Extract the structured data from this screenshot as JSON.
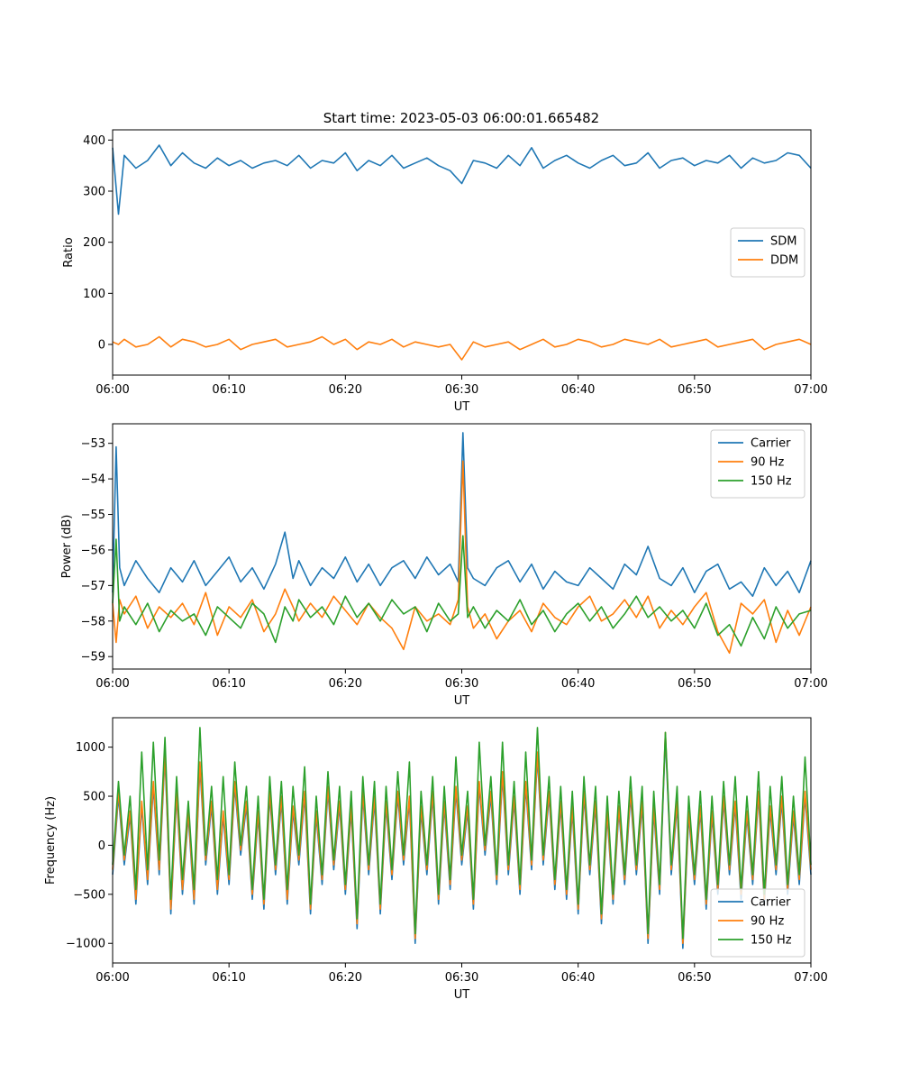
{
  "figure_title": "Start time: 2023-05-03 06:00:01.665482",
  "colors": {
    "blue": "#1f77b4",
    "orange": "#ff7f0e",
    "green": "#2ca02c"
  },
  "chart_data": [
    {
      "type": "line",
      "title": "Start time: 2023-05-03 06:00:01.665482",
      "xlabel": "UT",
      "ylabel": "Ratio",
      "x_ticks": [
        "06:00",
        "06:10",
        "06:20",
        "06:30",
        "06:40",
        "06:50",
        "07:00"
      ],
      "x_range_min": [
        0,
        60
      ],
      "ylim": [
        -60,
        420
      ],
      "y_ticks": [
        0,
        100,
        200,
        300,
        400
      ],
      "legend_loc": "center-right",
      "grid": false,
      "x_minutes": [
        0,
        0.5,
        1,
        2,
        3,
        4,
        5,
        6,
        7,
        8,
        9,
        10,
        11,
        12,
        13,
        14,
        15,
        16,
        17,
        18,
        19,
        20,
        21,
        22,
        23,
        24,
        25,
        26,
        27,
        28,
        29,
        30,
        31,
        32,
        33,
        34,
        35,
        36,
        37,
        38,
        39,
        40,
        41,
        42,
        43,
        44,
        45,
        46,
        47,
        48,
        49,
        50,
        51,
        52,
        53,
        54,
        55,
        56,
        57,
        58,
        59,
        60
      ],
      "series": [
        {
          "name": "SDM",
          "color": "#1f77b4",
          "values": [
            385,
            255,
            370,
            345,
            360,
            390,
            350,
            375,
            355,
            345,
            365,
            350,
            360,
            345,
            355,
            360,
            350,
            370,
            345,
            360,
            355,
            375,
            340,
            360,
            350,
            370,
            345,
            355,
            365,
            350,
            340,
            315,
            360,
            355,
            345,
            370,
            350,
            385,
            345,
            360,
            370,
            355,
            345,
            360,
            370,
            350,
            355,
            375,
            345,
            360,
            365,
            350,
            360,
            355,
            370,
            345,
            365,
            355,
            360,
            375,
            370,
            345
          ]
        },
        {
          "name": "DDM",
          "color": "#ff7f0e",
          "values": [
            5,
            0,
            10,
            -5,
            0,
            15,
            -5,
            10,
            5,
            -5,
            0,
            10,
            -10,
            0,
            5,
            10,
            -5,
            0,
            5,
            15,
            0,
            10,
            -10,
            5,
            0,
            10,
            -5,
            5,
            0,
            -5,
            0,
            -30,
            5,
            -5,
            0,
            5,
            -10,
            0,
            10,
            -5,
            0,
            10,
            5,
            -5,
            0,
            10,
            5,
            0,
            10,
            -5,
            0,
            5,
            10,
            -5,
            0,
            5,
            10,
            -10,
            0,
            5,
            10,
            0
          ]
        }
      ]
    },
    {
      "type": "line",
      "xlabel": "UT",
      "ylabel": "Power (dB)",
      "x_ticks": [
        "06:00",
        "06:10",
        "06:20",
        "06:30",
        "06:40",
        "06:50",
        "07:00"
      ],
      "x_range_min": [
        0,
        60
      ],
      "ylim": [
        -59.35,
        -52.45
      ],
      "y_ticks": [
        -59,
        -58,
        -57,
        -56,
        -55,
        -54,
        -53
      ],
      "legend_loc": "top-right",
      "grid": false,
      "x_minutes": [
        0,
        0.3,
        0.6,
        1,
        2,
        3,
        4,
        5,
        6,
        7,
        8,
        9,
        10,
        11,
        12,
        13,
        14,
        14.8,
        15.5,
        16,
        17,
        18,
        19,
        20,
        21,
        22,
        23,
        24,
        25,
        26,
        27,
        28,
        29,
        29.7,
        30.1,
        30.5,
        31,
        32,
        33,
        34,
        35,
        36,
        37,
        38,
        39,
        40,
        41,
        42,
        43,
        44,
        45,
        46,
        47,
        48,
        49,
        50,
        51,
        52,
        53,
        54,
        55,
        56,
        57,
        58,
        59,
        60
      ],
      "series": [
        {
          "name": "Carrier",
          "color": "#1f77b4",
          "values": [
            -57.2,
            -53.1,
            -56.5,
            -57.0,
            -56.3,
            -56.8,
            -57.2,
            -56.5,
            -56.9,
            -56.3,
            -57.0,
            -56.6,
            -56.2,
            -56.9,
            -56.5,
            -57.1,
            -56.4,
            -55.5,
            -56.8,
            -56.3,
            -57.0,
            -56.5,
            -56.8,
            -56.2,
            -56.9,
            -56.4,
            -57.0,
            -56.5,
            -56.3,
            -56.8,
            -56.2,
            -56.7,
            -56.4,
            -56.9,
            -52.7,
            -56.5,
            -56.8,
            -57.0,
            -56.5,
            -56.3,
            -56.9,
            -56.4,
            -57.1,
            -56.6,
            -56.9,
            -57.0,
            -56.5,
            -56.8,
            -57.1,
            -56.4,
            -56.7,
            -55.9,
            -56.8,
            -57.0,
            -56.5,
            -57.2,
            -56.6,
            -56.4,
            -57.1,
            -56.9,
            -57.3,
            -56.5,
            -57.0,
            -56.6,
            -57.2,
            -56.3
          ]
        },
        {
          "name": "90 Hz",
          "color": "#ff7f0e",
          "values": [
            -57.5,
            -58.6,
            -57.4,
            -57.8,
            -57.3,
            -58.2,
            -57.6,
            -57.9,
            -57.5,
            -58.1,
            -57.2,
            -58.4,
            -57.6,
            -57.9,
            -57.4,
            -58.3,
            -57.8,
            -57.1,
            -57.6,
            -58.0,
            -57.5,
            -57.9,
            -57.3,
            -57.7,
            -58.1,
            -57.5,
            -57.9,
            -58.2,
            -58.8,
            -57.6,
            -58.0,
            -57.8,
            -58.1,
            -57.4,
            -53.5,
            -57.6,
            -58.2,
            -57.8,
            -58.5,
            -58.0,
            -57.7,
            -58.3,
            -57.5,
            -57.9,
            -58.1,
            -57.6,
            -57.3,
            -58.0,
            -57.8,
            -57.4,
            -57.9,
            -57.3,
            -58.2,
            -57.7,
            -58.1,
            -57.6,
            -57.2,
            -58.3,
            -58.9,
            -57.5,
            -57.8,
            -57.4,
            -58.6,
            -57.7,
            -58.4,
            -57.6
          ]
        },
        {
          "name": "150 Hz",
          "color": "#2ca02c",
          "values": [
            -57.5,
            -55.7,
            -58.0,
            -57.6,
            -58.1,
            -57.5,
            -58.3,
            -57.7,
            -58.0,
            -57.8,
            -58.4,
            -57.6,
            -57.9,
            -58.2,
            -57.5,
            -57.8,
            -58.6,
            -57.6,
            -58.0,
            -57.4,
            -57.9,
            -57.6,
            -58.1,
            -57.3,
            -57.9,
            -57.5,
            -58.0,
            -57.4,
            -57.8,
            -57.6,
            -58.3,
            -57.5,
            -58.0,
            -57.8,
            -55.6,
            -57.9,
            -57.6,
            -58.2,
            -57.7,
            -58.0,
            -57.4,
            -58.1,
            -57.7,
            -58.3,
            -57.8,
            -57.5,
            -58.0,
            -57.6,
            -58.2,
            -57.8,
            -57.3,
            -57.9,
            -57.6,
            -58.0,
            -57.7,
            -58.2,
            -57.5,
            -58.4,
            -58.1,
            -58.7,
            -57.9,
            -58.5,
            -57.6,
            -58.2,
            -57.8,
            -57.7
          ]
        }
      ]
    },
    {
      "type": "line",
      "xlabel": "UT",
      "ylabel": "Frequency (Hz)",
      "x_ticks": [
        "06:00",
        "06:10",
        "06:20",
        "06:30",
        "06:40",
        "06:50",
        "07:00"
      ],
      "x_range_min": [
        0,
        60
      ],
      "ylim": [
        -1200,
        1300
      ],
      "y_ticks": [
        -1000,
        -500,
        0,
        500,
        1000
      ],
      "legend_loc": "bottom-right",
      "grid": false,
      "x_minutes": [
        0,
        0.5,
        1,
        1.5,
        2,
        2.5,
        3,
        3.5,
        4,
        4.5,
        5,
        5.5,
        6,
        6.5,
        7,
        7.5,
        8,
        8.5,
        9,
        9.5,
        10,
        10.5,
        11,
        11.5,
        12,
        12.5,
        13,
        13.5,
        14,
        14.5,
        15,
        15.5,
        16,
        16.5,
        17,
        17.5,
        18,
        18.5,
        19,
        19.5,
        20,
        20.5,
        21,
        21.5,
        22,
        22.5,
        23,
        23.5,
        24,
        24.5,
        25,
        25.5,
        26,
        26.5,
        27,
        27.5,
        28,
        28.5,
        29,
        29.5,
        30,
        30.5,
        31,
        31.5,
        32,
        32.5,
        33,
        33.5,
        34,
        34.5,
        35,
        35.5,
        36,
        36.5,
        37,
        37.5,
        38,
        38.5,
        39,
        39.5,
        40,
        40.5,
        41,
        41.5,
        42,
        42.5,
        43,
        43.5,
        44,
        44.5,
        45,
        45.5,
        46,
        46.5,
        47,
        47.5,
        48,
        48.5,
        49,
        49.5,
        50,
        50.5,
        51,
        51.5,
        52,
        52.5,
        53,
        53.5,
        54,
        54.5,
        55,
        55.5,
        56,
        56.5,
        57,
        57.5,
        58,
        58.5,
        59,
        59.5,
        60
      ],
      "series": [
        {
          "name": "Carrier",
          "color": "#1f77b4",
          "values": [
            -300,
            500,
            -200,
            300,
            -600,
            400,
            -400,
            600,
            -300,
            900,
            -700,
            500,
            -500,
            300,
            -600,
            800,
            -200,
            400,
            -500,
            300,
            -400,
            600,
            -100,
            400,
            -550,
            300,
            -650,
            500,
            -300,
            450,
            -600,
            350,
            -200,
            500,
            -700,
            300,
            -400,
            550,
            -250,
            400,
            -500,
            350,
            -850,
            500,
            -300,
            450,
            -700,
            400,
            -350,
            500,
            -200,
            450,
            -1000,
            350,
            -300,
            500,
            -600,
            400,
            -450,
            550,
            -200,
            350,
            -650,
            600,
            -100,
            500,
            -400,
            700,
            -300,
            450,
            -500,
            600,
            -250,
            900,
            -200,
            500,
            -450,
            400,
            -550,
            350,
            -700,
            500,
            -300,
            400,
            -800,
            300,
            -600,
            350,
            -400,
            500,
            -300,
            400,
            -1000,
            350,
            -500,
            1100,
            -300,
            400,
            -1050,
            300,
            -400,
            350,
            -650,
            300,
            -500,
            450,
            -300,
            400,
            -550,
            300,
            -400,
            500,
            -600,
            350,
            -300,
            450,
            -500,
            300,
            -400,
            500,
            -300
          ]
        },
        {
          "name": "90 Hz",
          "color": "#ff7f0e",
          "values": [
            -250,
            550,
            -150,
            350,
            -550,
            450,
            -350,
            650,
            -250,
            950,
            -650,
            550,
            -450,
            350,
            -550,
            850,
            -150,
            450,
            -450,
            350,
            -350,
            650,
            -50,
            450,
            -500,
            350,
            -600,
            550,
            -250,
            500,
            -550,
            400,
            -150,
            550,
            -650,
            350,
            -350,
            600,
            -200,
            450,
            -450,
            400,
            -800,
            550,
            -250,
            500,
            -650,
            450,
            -300,
            550,
            -150,
            500,
            -950,
            400,
            -250,
            550,
            -550,
            450,
            -400,
            600,
            -150,
            400,
            -600,
            650,
            -50,
            550,
            -350,
            750,
            -250,
            500,
            -450,
            650,
            -200,
            950,
            -150,
            550,
            -400,
            450,
            -500,
            400,
            -650,
            550,
            -250,
            450,
            -750,
            350,
            -550,
            400,
            -350,
            550,
            -250,
            450,
            -950,
            400,
            -450,
            1150,
            -250,
            450,
            -1000,
            350,
            -350,
            400,
            -600,
            350,
            -450,
            500,
            -250,
            450,
            -500,
            350,
            -350,
            550,
            -550,
            400,
            -250,
            500,
            -450,
            350,
            -350,
            550,
            -250
          ]
        },
        {
          "name": "150 Hz",
          "color": "#2ca02c",
          "values": [
            -200,
            650,
            -100,
            500,
            -450,
            950,
            -250,
            1050,
            -150,
            1100,
            -550,
            700,
            -350,
            450,
            -450,
            1200,
            -100,
            600,
            -350,
            700,
            -300,
            850,
            0,
            600,
            -450,
            500,
            -550,
            700,
            -200,
            650,
            -450,
            600,
            -100,
            800,
            -600,
            500,
            -300,
            750,
            -150,
            600,
            -400,
            550,
            -750,
            700,
            -200,
            650,
            -600,
            600,
            -250,
            750,
            -100,
            850,
            -900,
            550,
            -200,
            700,
            -500,
            600,
            -350,
            900,
            -100,
            550,
            -550,
            1050,
            0,
            700,
            -300,
            1050,
            -200,
            650,
            -400,
            950,
            -150,
            1200,
            -100,
            700,
            -350,
            600,
            -450,
            550,
            -600,
            700,
            -200,
            600,
            -700,
            500,
            -500,
            550,
            -300,
            700,
            -200,
            600,
            -900,
            550,
            -400,
            1150,
            -200,
            600,
            -950,
            500,
            -300,
            550,
            -550,
            500,
            -400,
            650,
            -200,
            700,
            -450,
            500,
            -300,
            750,
            -500,
            600,
            -200,
            700,
            -400,
            500,
            -300,
            900,
            -200
          ]
        }
      ]
    }
  ]
}
